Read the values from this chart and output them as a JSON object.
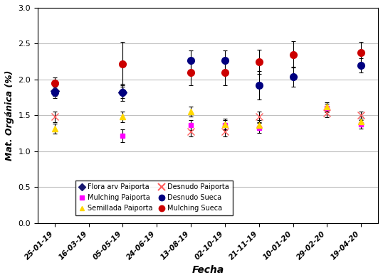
{
  "xlabel": "Fecha",
  "ylabel": "Mat. Orgánica (%)",
  "xlim": [
    -0.5,
    9.5
  ],
  "ylim": [
    0.0,
    3.0
  ],
  "yticks": [
    0.0,
    0.5,
    1.0,
    1.5,
    2.0,
    2.5,
    3.0
  ],
  "dates": [
    "25-01-19",
    "16-03-19",
    "05-05-19",
    "24-06-19",
    "13-08-19",
    "02-10-19",
    "21-11-19",
    "10-01-20",
    "29-02-20",
    "19-04-20"
  ],
  "series": [
    {
      "label": "Flora arv Paiporta",
      "color": "#191970",
      "marker": "D",
      "markersize": 6,
      "values": [
        1.84,
        null,
        1.82,
        null,
        null,
        null,
        null,
        null,
        null,
        null
      ],
      "yerr": [
        0.07,
        null,
        0.08,
        null,
        null,
        null,
        null,
        null,
        null,
        null
      ]
    },
    {
      "label": "Mulching Paiporta",
      "color": "#FF00FF",
      "marker": "s",
      "markersize": 5,
      "values": [
        null,
        null,
        1.22,
        null,
        1.37,
        1.37,
        1.33,
        null,
        1.6,
        1.38
      ],
      "yerr": [
        null,
        null,
        0.09,
        null,
        0.07,
        0.07,
        0.07,
        null,
        0.06,
        0.06
      ]
    },
    {
      "label": "Semillada Paiporta",
      "color": "#FFD700",
      "marker": "^",
      "markersize": 6,
      "values": [
        1.32,
        null,
        1.48,
        null,
        1.55,
        1.38,
        1.37,
        null,
        1.62,
        1.42
      ],
      "yerr": [
        0.07,
        null,
        0.07,
        null,
        0.07,
        0.07,
        0.07,
        null,
        0.06,
        0.06
      ]
    },
    {
      "label": "Desnudo Paiporta",
      "color": "#FF6060",
      "marker": "x",
      "markersize": 7,
      "values": [
        1.48,
        null,
        null,
        null,
        1.28,
        1.28,
        1.48,
        null,
        1.53,
        1.5
      ],
      "yerr": [
        0.07,
        null,
        null,
        null,
        0.07,
        0.07,
        0.07,
        null,
        0.06,
        0.05
      ]
    },
    {
      "label": "Desnudo Sueca",
      "color": "#000080",
      "marker": "o",
      "markersize": 7,
      "values": [
        1.82,
        null,
        1.82,
        null,
        2.27,
        2.27,
        1.92,
        2.04,
        null,
        2.2
      ],
      "yerr": [
        0.08,
        null,
        0.12,
        null,
        0.14,
        0.14,
        0.2,
        0.14,
        null,
        0.1
      ]
    },
    {
      "label": "Mulching Sueca",
      "color": "#CC0000",
      "marker": "o",
      "markersize": 7,
      "values": [
        1.95,
        null,
        2.22,
        null,
        2.1,
        2.1,
        2.25,
        2.35,
        null,
        2.38
      ],
      "yerr": [
        0.08,
        null,
        0.3,
        null,
        0.18,
        0.18,
        0.17,
        0.18,
        null,
        0.14
      ]
    }
  ],
  "legend_order": [
    0,
    3,
    1,
    4,
    2,
    5
  ]
}
